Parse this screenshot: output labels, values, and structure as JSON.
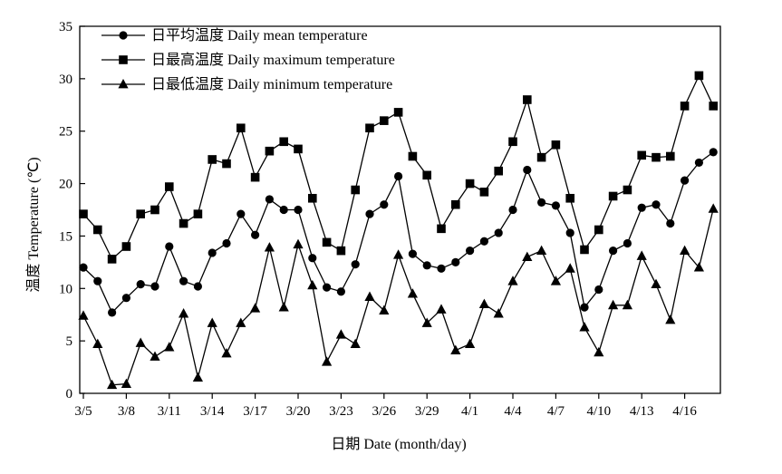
{
  "chart_data": {
    "type": "line",
    "xlabel": "日期 Date (month/day)",
    "ylabel": "温度 Temperature (℃)",
    "ylim": [
      0,
      35
    ],
    "yticks": [
      0,
      5,
      10,
      15,
      20,
      25,
      30,
      35
    ],
    "xtick_labels": [
      "3/5",
      "3/8",
      "3/11",
      "3/14",
      "3/17",
      "3/20",
      "3/23",
      "3/26",
      "3/29",
      "4/1",
      "4/4",
      "4/7",
      "4/10",
      "4/13",
      "4/16"
    ],
    "x": [
      "3/5",
      "3/6",
      "3/7",
      "3/8",
      "3/9",
      "3/10",
      "3/11",
      "3/12",
      "3/13",
      "3/14",
      "3/15",
      "3/16",
      "3/17",
      "3/18",
      "3/19",
      "3/20",
      "3/21",
      "3/22",
      "3/23",
      "3/24",
      "3/25",
      "3/26",
      "3/27",
      "3/28",
      "3/29",
      "3/30",
      "3/31",
      "4/1",
      "4/2",
      "4/3",
      "4/4",
      "4/5",
      "4/6",
      "4/7",
      "4/8",
      "4/9",
      "4/10",
      "4/11",
      "4/12",
      "4/13",
      "4/14",
      "4/15",
      "4/16",
      "4/17",
      "4/18"
    ],
    "grid": false,
    "legend_position": "top-left",
    "series": [
      {
        "name": "日平均温度 Daily mean temperature",
        "marker": "circle",
        "values": [
          12.0,
          10.7,
          7.7,
          9.1,
          10.4,
          10.2,
          14.0,
          10.7,
          10.2,
          13.4,
          14.3,
          17.1,
          15.1,
          18.5,
          17.5,
          17.5,
          12.9,
          10.1,
          9.7,
          12.3,
          17.1,
          18.0,
          20.7,
          13.3,
          12.2,
          11.9,
          12.5,
          13.6,
          14.5,
          15.3,
          17.5,
          21.3,
          18.2,
          17.9,
          15.3,
          8.2,
          9.9,
          13.6,
          14.3,
          17.7,
          18.0,
          16.2,
          20.3,
          22.0,
          23.0
        ]
      },
      {
        "name": "日最高温度 Daily maximum temperature",
        "marker": "square",
        "values": [
          17.1,
          15.6,
          12.8,
          14.0,
          17.1,
          17.5,
          19.7,
          16.2,
          17.1,
          22.3,
          21.9,
          25.3,
          20.6,
          23.1,
          24.0,
          23.3,
          18.6,
          14.4,
          13.6,
          19.4,
          25.3,
          26.0,
          26.8,
          22.6,
          20.8,
          15.7,
          18.0,
          20.0,
          19.2,
          21.2,
          24.0,
          28.0,
          22.5,
          23.7,
          18.6,
          13.7,
          15.6,
          18.8,
          19.4,
          22.7,
          22.5,
          22.6,
          27.4,
          30.3,
          27.4
        ]
      },
      {
        "name": "日最低温度 Daily minimum temperature",
        "marker": "triangle",
        "values": [
          7.4,
          4.7,
          0.8,
          0.9,
          4.8,
          3.5,
          4.4,
          7.6,
          1.5,
          6.7,
          3.8,
          6.7,
          8.1,
          13.9,
          8.2,
          14.2,
          10.3,
          3.0,
          5.6,
          4.7,
          9.2,
          7.9,
          13.2,
          9.5,
          6.7,
          8.0,
          4.1,
          4.7,
          8.5,
          7.6,
          10.7,
          13.0,
          13.6,
          10.7,
          11.9,
          6.3,
          3.9,
          8.4,
          8.4,
          13.1,
          10.4,
          7.0,
          13.6,
          12.0,
          17.6
        ]
      }
    ]
  }
}
